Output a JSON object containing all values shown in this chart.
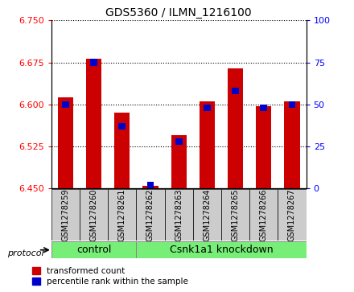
{
  "title": "GDS5360 / ILMN_1216100",
  "samples": [
    "GSM1278259",
    "GSM1278260",
    "GSM1278261",
    "GSM1278262",
    "GSM1278263",
    "GSM1278264",
    "GSM1278265",
    "GSM1278266",
    "GSM1278267"
  ],
  "red_values": [
    6.613,
    6.681,
    6.585,
    6.455,
    6.545,
    6.605,
    6.665,
    6.597,
    6.605
  ],
  "blue_values": [
    50,
    75,
    37,
    2,
    28,
    48,
    58,
    48,
    50
  ],
  "ylim_left": [
    6.45,
    6.75
  ],
  "ylim_right": [
    0,
    100
  ],
  "yticks_left": [
    6.45,
    6.525,
    6.6,
    6.675,
    6.75
  ],
  "yticks_right": [
    0,
    25,
    50,
    75,
    100
  ],
  "bar_width": 0.55,
  "red_color": "#cc0000",
  "blue_color": "#0000cc",
  "n_control": 3,
  "control_label": "control",
  "knockdown_label": "Csnk1a1 knockdown",
  "protocol_label": "protocol",
  "legend_red": "transformed count",
  "legend_blue": "percentile rank within the sample",
  "group_color": "#77ee77",
  "tick_bg_color": "#cccccc"
}
